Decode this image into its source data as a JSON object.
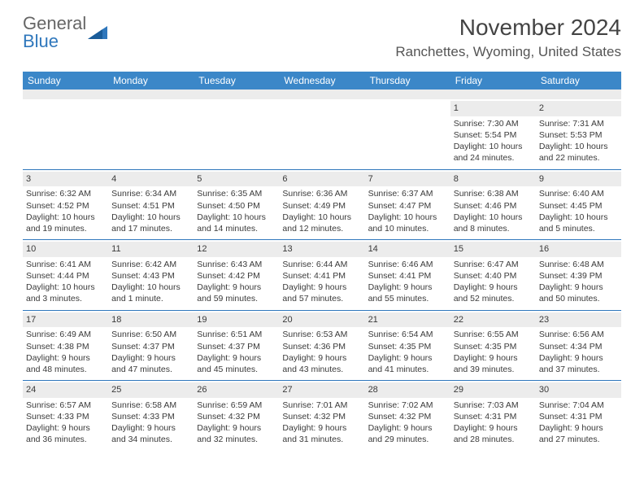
{
  "logo": {
    "text1": "General",
    "text2": "Blue"
  },
  "title": "November 2024",
  "location": "Ranchettes, Wyoming, United States",
  "colors": {
    "header_bg": "#3b87c8",
    "divider": "#2f77bc",
    "band": "#ececec",
    "text": "#3a3a3a"
  },
  "dow": [
    "Sunday",
    "Monday",
    "Tuesday",
    "Wednesday",
    "Thursday",
    "Friday",
    "Saturday"
  ],
  "weeks": [
    [
      {
        "n": "",
        "sr": "",
        "ss": "",
        "dl": ""
      },
      {
        "n": "",
        "sr": "",
        "ss": "",
        "dl": ""
      },
      {
        "n": "",
        "sr": "",
        "ss": "",
        "dl": ""
      },
      {
        "n": "",
        "sr": "",
        "ss": "",
        "dl": ""
      },
      {
        "n": "",
        "sr": "",
        "ss": "",
        "dl": ""
      },
      {
        "n": "1",
        "sr": "Sunrise: 7:30 AM",
        "ss": "Sunset: 5:54 PM",
        "dl": "Daylight: 10 hours and 24 minutes."
      },
      {
        "n": "2",
        "sr": "Sunrise: 7:31 AM",
        "ss": "Sunset: 5:53 PM",
        "dl": "Daylight: 10 hours and 22 minutes."
      }
    ],
    [
      {
        "n": "3",
        "sr": "Sunrise: 6:32 AM",
        "ss": "Sunset: 4:52 PM",
        "dl": "Daylight: 10 hours and 19 minutes."
      },
      {
        "n": "4",
        "sr": "Sunrise: 6:34 AM",
        "ss": "Sunset: 4:51 PM",
        "dl": "Daylight: 10 hours and 17 minutes."
      },
      {
        "n": "5",
        "sr": "Sunrise: 6:35 AM",
        "ss": "Sunset: 4:50 PM",
        "dl": "Daylight: 10 hours and 14 minutes."
      },
      {
        "n": "6",
        "sr": "Sunrise: 6:36 AM",
        "ss": "Sunset: 4:49 PM",
        "dl": "Daylight: 10 hours and 12 minutes."
      },
      {
        "n": "7",
        "sr": "Sunrise: 6:37 AM",
        "ss": "Sunset: 4:47 PM",
        "dl": "Daylight: 10 hours and 10 minutes."
      },
      {
        "n": "8",
        "sr": "Sunrise: 6:38 AM",
        "ss": "Sunset: 4:46 PM",
        "dl": "Daylight: 10 hours and 8 minutes."
      },
      {
        "n": "9",
        "sr": "Sunrise: 6:40 AM",
        "ss": "Sunset: 4:45 PM",
        "dl": "Daylight: 10 hours and 5 minutes."
      }
    ],
    [
      {
        "n": "10",
        "sr": "Sunrise: 6:41 AM",
        "ss": "Sunset: 4:44 PM",
        "dl": "Daylight: 10 hours and 3 minutes."
      },
      {
        "n": "11",
        "sr": "Sunrise: 6:42 AM",
        "ss": "Sunset: 4:43 PM",
        "dl": "Daylight: 10 hours and 1 minute."
      },
      {
        "n": "12",
        "sr": "Sunrise: 6:43 AM",
        "ss": "Sunset: 4:42 PM",
        "dl": "Daylight: 9 hours and 59 minutes."
      },
      {
        "n": "13",
        "sr": "Sunrise: 6:44 AM",
        "ss": "Sunset: 4:41 PM",
        "dl": "Daylight: 9 hours and 57 minutes."
      },
      {
        "n": "14",
        "sr": "Sunrise: 6:46 AM",
        "ss": "Sunset: 4:41 PM",
        "dl": "Daylight: 9 hours and 55 minutes."
      },
      {
        "n": "15",
        "sr": "Sunrise: 6:47 AM",
        "ss": "Sunset: 4:40 PM",
        "dl": "Daylight: 9 hours and 52 minutes."
      },
      {
        "n": "16",
        "sr": "Sunrise: 6:48 AM",
        "ss": "Sunset: 4:39 PM",
        "dl": "Daylight: 9 hours and 50 minutes."
      }
    ],
    [
      {
        "n": "17",
        "sr": "Sunrise: 6:49 AM",
        "ss": "Sunset: 4:38 PM",
        "dl": "Daylight: 9 hours and 48 minutes."
      },
      {
        "n": "18",
        "sr": "Sunrise: 6:50 AM",
        "ss": "Sunset: 4:37 PM",
        "dl": "Daylight: 9 hours and 47 minutes."
      },
      {
        "n": "19",
        "sr": "Sunrise: 6:51 AM",
        "ss": "Sunset: 4:37 PM",
        "dl": "Daylight: 9 hours and 45 minutes."
      },
      {
        "n": "20",
        "sr": "Sunrise: 6:53 AM",
        "ss": "Sunset: 4:36 PM",
        "dl": "Daylight: 9 hours and 43 minutes."
      },
      {
        "n": "21",
        "sr": "Sunrise: 6:54 AM",
        "ss": "Sunset: 4:35 PM",
        "dl": "Daylight: 9 hours and 41 minutes."
      },
      {
        "n": "22",
        "sr": "Sunrise: 6:55 AM",
        "ss": "Sunset: 4:35 PM",
        "dl": "Daylight: 9 hours and 39 minutes."
      },
      {
        "n": "23",
        "sr": "Sunrise: 6:56 AM",
        "ss": "Sunset: 4:34 PM",
        "dl": "Daylight: 9 hours and 37 minutes."
      }
    ],
    [
      {
        "n": "24",
        "sr": "Sunrise: 6:57 AM",
        "ss": "Sunset: 4:33 PM",
        "dl": "Daylight: 9 hours and 36 minutes."
      },
      {
        "n": "25",
        "sr": "Sunrise: 6:58 AM",
        "ss": "Sunset: 4:33 PM",
        "dl": "Daylight: 9 hours and 34 minutes."
      },
      {
        "n": "26",
        "sr": "Sunrise: 6:59 AM",
        "ss": "Sunset: 4:32 PM",
        "dl": "Daylight: 9 hours and 32 minutes."
      },
      {
        "n": "27",
        "sr": "Sunrise: 7:01 AM",
        "ss": "Sunset: 4:32 PM",
        "dl": "Daylight: 9 hours and 31 minutes."
      },
      {
        "n": "28",
        "sr": "Sunrise: 7:02 AM",
        "ss": "Sunset: 4:32 PM",
        "dl": "Daylight: 9 hours and 29 minutes."
      },
      {
        "n": "29",
        "sr": "Sunrise: 7:03 AM",
        "ss": "Sunset: 4:31 PM",
        "dl": "Daylight: 9 hours and 28 minutes."
      },
      {
        "n": "30",
        "sr": "Sunrise: 7:04 AM",
        "ss": "Sunset: 4:31 PM",
        "dl": "Daylight: 9 hours and 27 minutes."
      }
    ]
  ]
}
